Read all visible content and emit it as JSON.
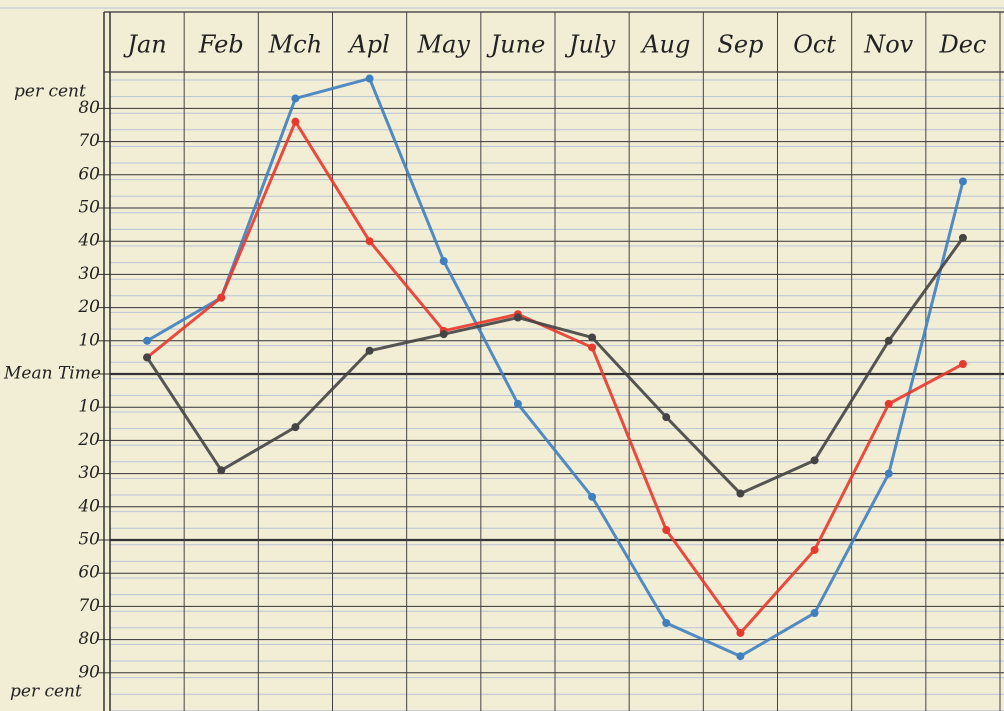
{
  "chart_data": {
    "type": "line",
    "categories": [
      "Jan",
      "Feb",
      "Mch",
      "Apl",
      "May",
      "June",
      "July",
      "Aug",
      "Sep",
      "Oct",
      "Nov",
      "Dec"
    ],
    "y_label_top": "per cent",
    "y_label_bottom": "per cent",
    "series": [
      {
        "color": "#3f7fbf",
        "values": [
          10,
          23,
          83,
          89,
          34,
          -9,
          -37,
          -75,
          -85,
          -72,
          -30,
          58
        ]
      },
      {
        "color": "#e8392d",
        "values": [
          5,
          23,
          76,
          40,
          13,
          18,
          8,
          -47,
          -78,
          -53,
          -9,
          3
        ]
      },
      {
        "color": "#444444",
        "values": [
          5,
          -29,
          -16,
          7,
          12,
          17,
          11,
          -13,
          -36,
          -26,
          10,
          41
        ]
      }
    ],
    "ylim": [
      -100,
      100
    ],
    "yticks": [
      80,
      70,
      60,
      50,
      40,
      30,
      20,
      10,
      {
        "value": 0,
        "label": "Mean Time"
      },
      {
        "value": -10,
        "label": "10"
      },
      {
        "value": -20,
        "label": "20"
      },
      {
        "value": -30,
        "label": "30"
      },
      {
        "value": -40,
        "label": "40"
      },
      {
        "value": -50,
        "label": "50"
      },
      {
        "value": -60,
        "label": "60"
      },
      {
        "value": -70,
        "label": "70"
      },
      {
        "value": -80,
        "label": "80"
      },
      {
        "value": -90,
        "label": "90"
      }
    ],
    "grid": true
  }
}
